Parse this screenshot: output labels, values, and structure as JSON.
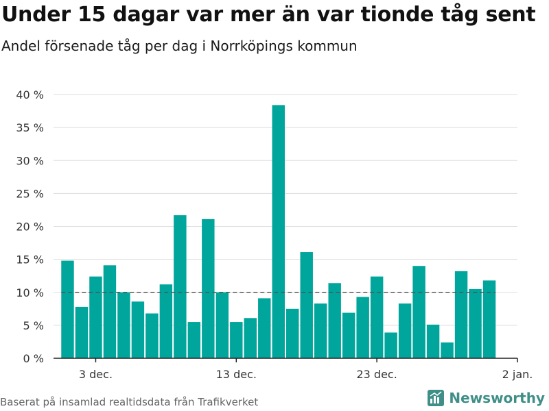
{
  "header": {
    "title": "Under 15 dagar var mer än var tionde tåg sent",
    "subtitle": "Andel försenade tåg per dag i Norrköpings kommun"
  },
  "footer": {
    "source": "Baserat på insamlad realtidsdata från Trafikverket",
    "brand": "Newsworthy"
  },
  "colors": {
    "bar": "#00a59c",
    "grid": "#dddddd",
    "axis": "#222222",
    "reference_line": "#555555",
    "brand": "#3f8f88"
  },
  "chart_data": {
    "type": "bar",
    "title": "Under 15 dagar var mer än var tionde tåg sent",
    "subtitle": "Andel försenade tåg per dag i Norrköpings kommun",
    "x": [
      "2023-12-01",
      "2023-12-02",
      "2023-12-03",
      "2023-12-04",
      "2023-12-05",
      "2023-12-06",
      "2023-12-07",
      "2023-12-08",
      "2023-12-09",
      "2023-12-10",
      "2023-12-11",
      "2023-12-12",
      "2023-12-13",
      "2023-12-14",
      "2023-12-15",
      "2023-12-16",
      "2023-12-17",
      "2023-12-18",
      "2023-12-19",
      "2023-12-20",
      "2023-12-21",
      "2023-12-22",
      "2023-12-23",
      "2023-12-24",
      "2023-12-25",
      "2023-12-26",
      "2023-12-27",
      "2023-12-28",
      "2023-12-29",
      "2023-12-30",
      "2023-12-31"
    ],
    "values": [
      14.8,
      7.8,
      12.4,
      14.1,
      10.0,
      8.6,
      6.8,
      11.2,
      21.7,
      5.5,
      21.1,
      10.0,
      5.5,
      6.1,
      9.1,
      38.4,
      7.5,
      16.1,
      8.3,
      11.4,
      6.9,
      9.3,
      12.4,
      3.9,
      8.3,
      14.0,
      5.1,
      2.4,
      13.2,
      10.5,
      11.8
    ],
    "reference_line": 10,
    "xticks": [
      {
        "x": "2023-12-03",
        "label": "3 dec."
      },
      {
        "x": "2023-12-13",
        "label": "13 dec."
      },
      {
        "x": "2023-12-23",
        "label": "23 dec."
      },
      {
        "x": "2024-01-02",
        "label": "2 jan."
      }
    ],
    "xlim": [
      "2023-11-30",
      "2024-01-02"
    ],
    "ylim": [
      0,
      40
    ],
    "yticks": [
      0,
      5,
      10,
      15,
      20,
      25,
      30,
      35,
      40
    ],
    "ytick_labels": [
      "0 %",
      "5 %",
      "10 %",
      "15 %",
      "20 %",
      "25 %",
      "30 %",
      "35 %",
      "40 %"
    ],
    "grid": true
  }
}
